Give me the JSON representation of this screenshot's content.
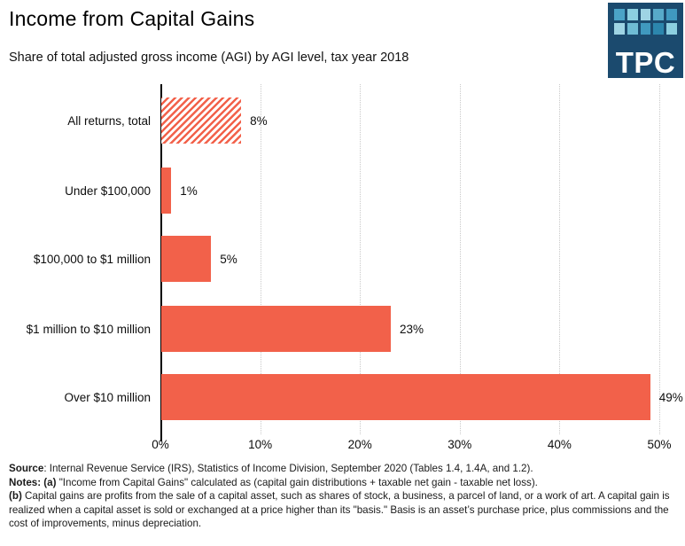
{
  "header": {
    "title": "Income from Capital Gains",
    "subtitle": "Share of total adjusted gross income (AGI) by AGI level, tax year 2018"
  },
  "logo": {
    "text": "TPC",
    "background": "#1b4a6e",
    "tile_colors": [
      "#4ba3c7",
      "#8ccfe0",
      "#9ed4e4",
      "#57aac9",
      "#4099bf",
      "#9ed4e4",
      "#6fbcd4",
      "#4099bf",
      "#2c86ad",
      "#8ccfe0"
    ]
  },
  "chart_data": {
    "type": "bar",
    "orientation": "horizontal",
    "title": "Income from Capital Gains",
    "subtitle": "Share of total adjusted gross income (AGI) by AGI level, tax year 2018",
    "categories": [
      "All returns, total",
      "Under $100,000",
      "$100,000 to $1 million",
      "$1 million to $10 million",
      "Over $10 million"
    ],
    "values": [
      8,
      1,
      5,
      23,
      49
    ],
    "value_labels": [
      "8%",
      "1%",
      "5%",
      "23%",
      "49%"
    ],
    "xlim": [
      0,
      50
    ],
    "xticks": [
      "0%",
      "10%",
      "20%",
      "30%",
      "40%",
      "50%"
    ],
    "xtick_values": [
      0,
      10,
      20,
      30,
      40,
      50
    ],
    "grid": "dotted-vertical",
    "legend": "none",
    "bar_color": "#f2614a",
    "hatched_bar_index": 0,
    "hatch_style": "diagonal-stripes-on-white"
  },
  "footer": {
    "source_label": "Source",
    "source_text": ": Internal Revenue Service (IRS), Statistics of Income Division, September 2020 (Tables 1.4, 1.4A, and 1.2).",
    "notes_label": "Notes: (a)",
    "notes_text": " \"Income from Capital Gains\" calculated as (capital gain distributions + taxable net gain - taxable net loss).",
    "note_b_label": "(b)",
    "note_b_text": " Capital gains are profits from the sale of a capital asset, such as shares of stock, a business, a parcel of land, or a work of art. A capital gain is realized when a capital asset is sold or exchanged at a price higher than its \"basis.\" Basis is an asset’s purchase price, plus commissions and the cost of improvements, minus depreciation."
  }
}
